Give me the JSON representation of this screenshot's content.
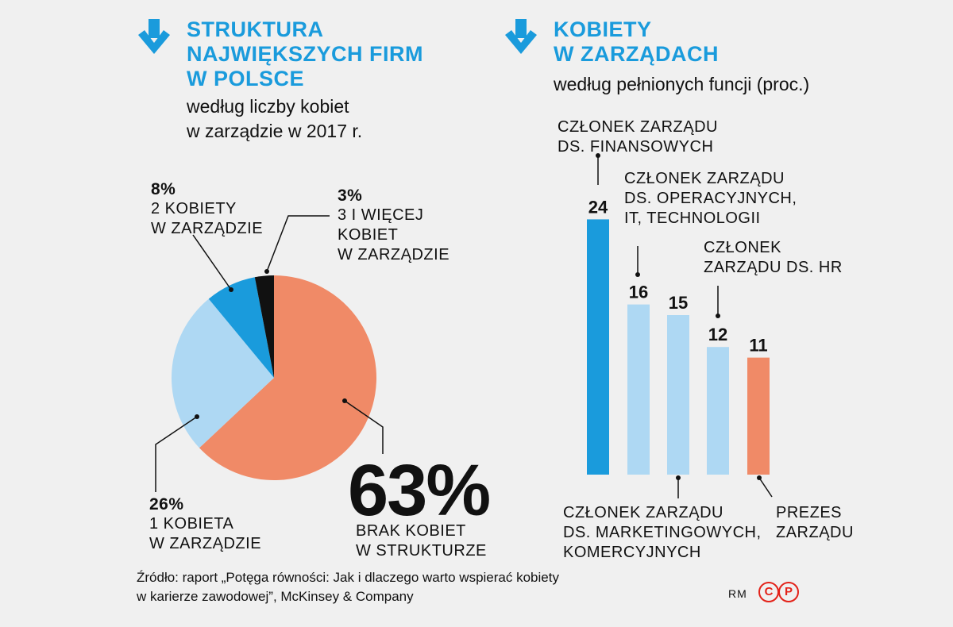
{
  "left_panel": {
    "title_lines": [
      "STRUKTURA",
      "NAJWIĘKSZYCH FIRM",
      "W POLSCE"
    ],
    "subtitle_lines": [
      "według liczby kobiet",
      "w zarządzie w 2017 r."
    ]
  },
  "right_panel": {
    "title_lines": [
      "KOBIETY",
      "W ZARZĄDACH"
    ],
    "subtitle": "według pełnionych funcji (proc.)"
  },
  "pie_labels": {
    "two": {
      "pct": "8%",
      "lines": [
        "2 KOBIETY",
        "W ZARZĄDZIE"
      ]
    },
    "three": {
      "pct": "3%",
      "lines": [
        "3 I WIĘCEJ",
        "KOBIET",
        "W ZARZĄDZIE"
      ]
    },
    "one": {
      "pct": "26%",
      "lines": [
        "1 KOBIETA",
        "W ZARZĄDZIE"
      ]
    },
    "none": {
      "pct": "63%",
      "lines": [
        "BRAK KOBIET",
        "W STRUKTURZE"
      ]
    }
  },
  "bar_labels": {
    "fin": [
      "CZŁONEK ZARZĄDU",
      "DS. FINANSOWYCH"
    ],
    "ops": [
      "CZŁONEK ZARZĄDU",
      "DS. OPERACYJNYCH,",
      "IT, TECHNOLOGII"
    ],
    "hr": [
      "CZŁONEK",
      "ZARZĄDU DS. HR"
    ],
    "mkt": [
      "CZŁONEK ZARZĄDU",
      "DS. MARKETINGOWYCH,",
      "KOMERCYJNYCH"
    ],
    "ceo": [
      "PREZES",
      "ZARZĄDU"
    ]
  },
  "footer": {
    "source_lines": [
      "Źródło: raport „Potęga równości: Jak i dlaczego warto wspierać kobiety",
      "w karierze zawodowej”, McKinsey & Company"
    ],
    "author": "RM",
    "badge_c": "C",
    "badge_p": "P"
  },
  "colors": {
    "accent": "#1a9bdc",
    "light_blue": "#aed8f3",
    "salmon": "#f08a67",
    "black": "#111111"
  },
  "chart_data": [
    {
      "type": "pie",
      "categories": [
        "BRAK KOBIET W STRUKTURZE",
        "1 KOBIETA W ZARZĄDZIE",
        "2 KOBIETY W ZARZĄDZIE",
        "3 I WIĘCEJ KOBIET W ZARZĄDZIE"
      ],
      "values": [
        63,
        26,
        8,
        3
      ],
      "colors": [
        "#f08a67",
        "#aed8f3",
        "#1a9bdc",
        "#111111"
      ]
    },
    {
      "type": "bar",
      "categories": [
        "CZŁONEK ZARZĄDU DS. FINANSOWYCH",
        "CZŁONEK ZARZĄDU DS. OPERACYJNYCH, IT, TECHNOLOGII",
        "CZŁONEK ZARZĄDU DS. MARKETINGOWYCH, KOMERCYJNYCH",
        "CZŁONEK ZARZĄDU DS. HR",
        "PREZES ZARZĄDU"
      ],
      "values": [
        24,
        16,
        15,
        12,
        11
      ],
      "value_labels": [
        "24",
        "16",
        "15",
        "12",
        "11"
      ],
      "colors": [
        "#1a9bdc",
        "#aed8f3",
        "#aed8f3",
        "#aed8f3",
        "#f08a67"
      ]
    }
  ]
}
